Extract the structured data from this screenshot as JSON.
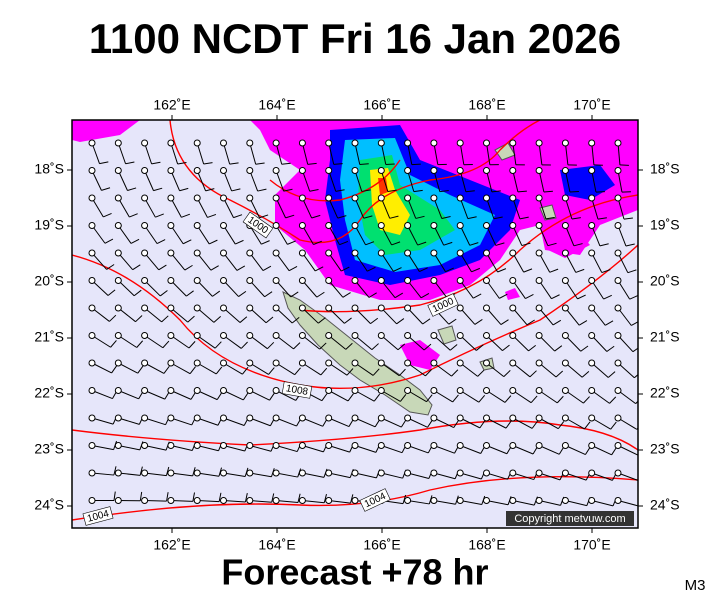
{
  "header": {
    "title": "1100 NCDT Fri 16 Jan 2026"
  },
  "map": {
    "lon_ticks": [
      {
        "value": 162,
        "label": "162˚E"
      },
      {
        "value": 164,
        "label": "164˚E"
      },
      {
        "value": 166,
        "label": "166˚E"
      },
      {
        "value": 168,
        "label": "168˚E"
      },
      {
        "value": 170,
        "label": "170˚E"
      }
    ],
    "lat_ticks": [
      {
        "value": 18,
        "label": "18˚S"
      },
      {
        "value": 19,
        "label": "19˚S"
      },
      {
        "value": 20,
        "label": "20˚S"
      },
      {
        "value": 21,
        "label": "21˚S"
      },
      {
        "value": 22,
        "label": "22˚S"
      },
      {
        "value": 23,
        "label": "23˚S"
      },
      {
        "value": 24,
        "label": "24˚S"
      }
    ],
    "isobar_labels": [
      "1000",
      "1000",
      "1008",
      "1004",
      "1004"
    ],
    "copyright": "Copyright metvuw.com"
  },
  "footer": {
    "forecast": "Forecast +78 hr",
    "model": "M3"
  }
}
